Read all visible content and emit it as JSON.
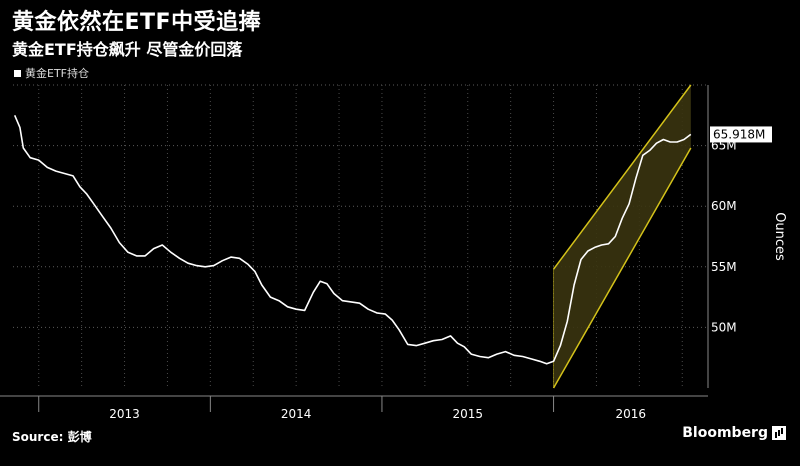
{
  "title": "黄金依然在ETF中受追捧",
  "subtitle": "黄金ETF持仓飙升  尽管金价回落",
  "source": "Source: 彭博",
  "brand": "Bloomberg",
  "chart_data": {
    "type": "line",
    "legend": "黄金ETF持仓",
    "ylabel": "Ounces",
    "y_ticks": [
      "50M",
      "55M",
      "60M",
      "65M"
    ],
    "y_tick_values": [
      50,
      55,
      60,
      65
    ],
    "ylim": [
      45,
      70
    ],
    "x_ticks": [
      "2013",
      "2014",
      "2015",
      "2016"
    ],
    "xlim": [
      2012.85,
      2016.9
    ],
    "year_boundaries": [
      2013.0,
      2014.0,
      2015.0,
      2016.0
    ],
    "last_value_label": "65.918M",
    "colors": {
      "line": "#ffffff",
      "channel": "#d4c21a",
      "channel_fill": "#3a3410"
    },
    "channel": {
      "lower": [
        [
          2016.0,
          45.0
        ],
        [
          2016.8,
          64.8
        ]
      ],
      "upper": [
        [
          2016.0,
          54.8
        ],
        [
          2016.8,
          70.0
        ]
      ]
    },
    "series": [
      {
        "values": [
          [
            2012.86,
            67.5
          ],
          [
            2012.89,
            66.5
          ],
          [
            2012.91,
            64.8
          ],
          [
            2012.95,
            64.0
          ],
          [
            2013.0,
            63.8
          ],
          [
            2013.05,
            63.2
          ],
          [
            2013.1,
            62.9
          ],
          [
            2013.15,
            62.7
          ],
          [
            2013.2,
            62.5
          ],
          [
            2013.24,
            61.6
          ],
          [
            2013.28,
            61.0
          ],
          [
            2013.32,
            60.2
          ],
          [
            2013.37,
            59.2
          ],
          [
            2013.42,
            58.2
          ],
          [
            2013.47,
            57.0
          ],
          [
            2013.52,
            56.2
          ],
          [
            2013.57,
            55.9
          ],
          [
            2013.62,
            55.9
          ],
          [
            2013.67,
            56.5
          ],
          [
            2013.72,
            56.8
          ],
          [
            2013.77,
            56.2
          ],
          [
            2013.82,
            55.7
          ],
          [
            2013.87,
            55.3
          ],
          [
            2013.92,
            55.1
          ],
          [
            2013.97,
            55.0
          ],
          [
            2014.02,
            55.1
          ],
          [
            2014.07,
            55.5
          ],
          [
            2014.12,
            55.8
          ],
          [
            2014.17,
            55.7
          ],
          [
            2014.22,
            55.2
          ],
          [
            2014.26,
            54.6
          ],
          [
            2014.3,
            53.5
          ],
          [
            2014.35,
            52.5
          ],
          [
            2014.4,
            52.2
          ],
          [
            2014.45,
            51.7
          ],
          [
            2014.5,
            51.5
          ],
          [
            2014.55,
            51.4
          ],
          [
            2014.6,
            52.9
          ],
          [
            2014.64,
            53.8
          ],
          [
            2014.68,
            53.6
          ],
          [
            2014.72,
            52.8
          ],
          [
            2014.77,
            52.2
          ],
          [
            2014.82,
            52.1
          ],
          [
            2014.87,
            52.0
          ],
          [
            2014.92,
            51.5
          ],
          [
            2014.97,
            51.2
          ],
          [
            2015.02,
            51.1
          ],
          [
            2015.06,
            50.6
          ],
          [
            2015.1,
            49.8
          ],
          [
            2015.15,
            48.6
          ],
          [
            2015.2,
            48.5
          ],
          [
            2015.25,
            48.7
          ],
          [
            2015.3,
            48.9
          ],
          [
            2015.35,
            49.0
          ],
          [
            2015.4,
            49.3
          ],
          [
            2015.44,
            48.7
          ],
          [
            2015.48,
            48.4
          ],
          [
            2015.52,
            47.8
          ],
          [
            2015.57,
            47.6
          ],
          [
            2015.62,
            47.5
          ],
          [
            2015.67,
            47.8
          ],
          [
            2015.72,
            48.0
          ],
          [
            2015.77,
            47.7
          ],
          [
            2015.82,
            47.6
          ],
          [
            2015.87,
            47.4
          ],
          [
            2015.92,
            47.2
          ],
          [
            2015.96,
            47.0
          ],
          [
            2016.0,
            47.2
          ],
          [
            2016.04,
            48.5
          ],
          [
            2016.08,
            50.5
          ],
          [
            2016.12,
            53.5
          ],
          [
            2016.16,
            55.6
          ],
          [
            2016.2,
            56.3
          ],
          [
            2016.24,
            56.6
          ],
          [
            2016.28,
            56.8
          ],
          [
            2016.32,
            56.9
          ],
          [
            2016.36,
            57.5
          ],
          [
            2016.4,
            59.0
          ],
          [
            2016.44,
            60.2
          ],
          [
            2016.48,
            62.3
          ],
          [
            2016.52,
            64.2
          ],
          [
            2016.56,
            64.6
          ],
          [
            2016.6,
            65.2
          ],
          [
            2016.64,
            65.5
          ],
          [
            2016.68,
            65.3
          ],
          [
            2016.72,
            65.3
          ],
          [
            2016.76,
            65.5
          ],
          [
            2016.8,
            65.92
          ]
        ]
      }
    ]
  }
}
